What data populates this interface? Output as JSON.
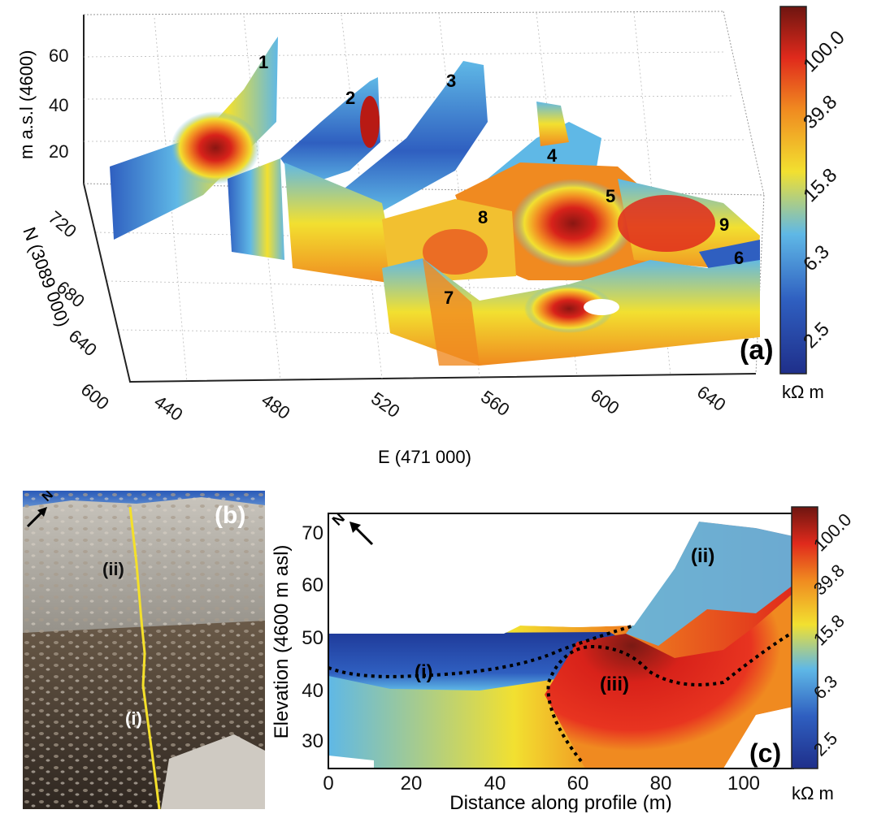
{
  "panel_a": {
    "label": "(a)",
    "z_axis_label": "m a.s.l (4600)",
    "y_axis_label": "N (3089 000)",
    "x_axis_label": "E (471 000)",
    "z_ticks": [
      "20",
      "40",
      "60"
    ],
    "y_ticks": [
      "600",
      "640",
      "680",
      "720"
    ],
    "x_ticks": [
      "440",
      "480",
      "520",
      "560",
      "600",
      "640"
    ],
    "profile_numbers": [
      "1",
      "2",
      "3",
      "4",
      "5",
      "6",
      "7",
      "8",
      "9"
    ],
    "colorbar": {
      "ticks": [
        "2.5",
        "6.3",
        "15.8",
        "39.8",
        "100.0"
      ],
      "unit": "kΩ m"
    }
  },
  "panel_b": {
    "label": "(b)",
    "north_label": "N",
    "zone_labels": [
      "(ii)",
      "(i)"
    ]
  },
  "panel_c": {
    "label": "(c)",
    "north_label": "N",
    "zone_labels": [
      "(i)",
      "(ii)",
      "(iii)"
    ],
    "colorbar": {
      "ticks": [
        "2.5",
        "6.3",
        "15.8",
        "39.8",
        "100.0"
      ],
      "unit": "kΩ m"
    }
  },
  "colors": {
    "low": "#1f3a99",
    "mid_low": "#5fb8e6",
    "mid": "#f2e030",
    "mid_high": "#e83420",
    "high": "#6e1510"
  },
  "chart_data": [
    {
      "type": "heatmap",
      "title": "(a)",
      "xlabel": "E (471 000)",
      "ylabel": "N (3089 000)",
      "zlabel": "m a.s.l (4600)",
      "x_ticks": [
        440,
        480,
        520,
        560,
        600,
        640
      ],
      "y_ticks": [
        600,
        640,
        680,
        720
      ],
      "z_ticks": [
        20,
        40,
        60
      ],
      "profiles": [
        "1",
        "2",
        "3",
        "4",
        "5",
        "6",
        "7",
        "8",
        "9"
      ],
      "colorbar_unit": "kΩ m",
      "colorbar_scale": "log",
      "colorbar_ticks": [
        2.5,
        6.3,
        15.8,
        39.8,
        100.0
      ]
    },
    {
      "type": "heatmap",
      "title": "(c)",
      "xlabel": "Distance along profile (m)",
      "ylabel": "Elevation (4600 m asl)",
      "xlim": [
        0,
        112
      ],
      "ylim": [
        25,
        72
      ],
      "x_ticks": [
        0,
        20,
        40,
        60,
        80,
        100
      ],
      "y_ticks": [
        30,
        40,
        50,
        60,
        70
      ],
      "zones": [
        "(i)",
        "(ii)",
        "(iii)"
      ],
      "colorbar_unit": "kΩ m",
      "colorbar_scale": "log",
      "colorbar_ticks": [
        2.5,
        6.3,
        15.8,
        39.8,
        100.0
      ]
    }
  ]
}
